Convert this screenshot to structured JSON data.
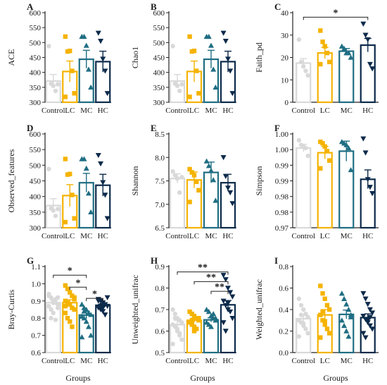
{
  "colors": {
    "Control": "#d9d9d9",
    "LC": "#f5b301",
    "MC": "#1f6e83",
    "HC": "#0c2a4a",
    "axis": "#222222"
  },
  "xlabel": "Groups",
  "chart_data": [
    {
      "type": "bar",
      "panel": "A",
      "ylabel": "ACE",
      "categories": [
        "Control",
        "LC",
        "MC",
        "HC"
      ],
      "ylim": [
        300,
        600
      ],
      "yticks": [
        "300",
        "350",
        "400",
        "450",
        "500",
        "550",
        "600"
      ],
      "values": [
        371,
        403,
        444,
        436
      ],
      "errors": [
        22,
        35,
        30,
        35
      ],
      "points": [
        [
          488,
          362,
          355,
          338,
          360
        ],
        [
          520,
          470,
          472,
          405,
          330,
          318
        ],
        [
          520,
          520,
          490,
          410,
          350
        ],
        [
          532,
          505,
          445,
          405,
          330
        ]
      ],
      "shapes": [
        "circle",
        "square",
        "triangle",
        "triangle-down"
      ],
      "significance": []
    },
    {
      "type": "bar",
      "panel": "B",
      "ylabel": "Chao1",
      "categories": [
        "Control",
        "LC",
        "MC",
        "HC"
      ],
      "ylim": [
        300,
        600
      ],
      "yticks": [
        "300",
        "350",
        "400",
        "450",
        "500",
        "550",
        "600"
      ],
      "values": [
        371,
        403,
        444,
        436
      ],
      "errors": [
        22,
        35,
        30,
        35
      ],
      "points": [
        [
          488,
          362,
          355,
          338,
          360
        ],
        [
          520,
          470,
          472,
          405,
          330,
          318
        ],
        [
          520,
          520,
          490,
          410,
          350
        ],
        [
          532,
          505,
          445,
          405,
          330
        ]
      ],
      "shapes": [
        "circle",
        "square",
        "triangle",
        "triangle-down"
      ],
      "significance": []
    },
    {
      "type": "bar",
      "panel": "C",
      "ylabel": "Faith_pd",
      "categories": [
        "Control",
        "LC",
        "MC",
        "HC"
      ],
      "ylim": [
        0,
        40
      ],
      "yticks": [
        "0",
        "10",
        "20",
        "30",
        "40"
      ],
      "values": [
        17.5,
        22,
        22.8,
        25.5
      ],
      "errors": [
        2,
        2.5,
        1.2,
        3
      ],
      "points": [
        [
          28,
          18,
          16,
          14,
          12
        ],
        [
          32,
          27,
          25,
          22,
          18,
          17
        ],
        [
          25,
          24,
          22,
          22,
          20
        ],
        [
          35,
          30,
          28,
          17,
          15
        ]
      ],
      "shapes": [
        "circle",
        "square",
        "triangle",
        "triangle-down"
      ],
      "significance": [
        {
          "from": 0,
          "to": 3,
          "label": "*",
          "y": 38
        }
      ]
    },
    {
      "type": "bar",
      "panel": "D",
      "ylabel": "Observed_features",
      "categories": [
        "Control",
        "LC",
        "MC",
        "HC"
      ],
      "ylim": [
        300,
        600
      ],
      "yticks": [
        "300",
        "350",
        "400",
        "450",
        "500",
        "550",
        "600"
      ],
      "values": [
        371,
        403,
        444,
        436
      ],
      "errors": [
        22,
        35,
        30,
        35
      ],
      "points": [
        [
          488,
          362,
          355,
          338,
          360
        ],
        [
          520,
          470,
          472,
          405,
          330,
          318
        ],
        [
          520,
          520,
          490,
          410,
          350
        ],
        [
          532,
          505,
          445,
          405,
          330
        ]
      ],
      "shapes": [
        "circle",
        "square",
        "triangle",
        "triangle-down"
      ],
      "significance": []
    },
    {
      "type": "bar",
      "panel": "E",
      "ylabel": "Shannon",
      "categories": [
        "Control",
        "LC",
        "MC",
        "HC"
      ],
      "ylim": [
        6.5,
        8.5
      ],
      "yticks": [
        "6.5",
        "7.0",
        "7.5",
        "8.0",
        "8.5"
      ],
      "values": [
        7.55,
        7.52,
        7.68,
        7.46
      ],
      "errors": [
        0.1,
        0.17,
        0.22,
        0.18
      ],
      "points": [
        [
          7.7,
          7.62,
          7.55,
          7.25,
          7.58
        ],
        [
          7.75,
          7.68,
          7.62,
          7.48,
          7.3,
          7.05
        ],
        [
          7.92,
          7.82,
          7.72,
          7.52,
          7.08
        ],
        [
          8.0,
          7.6,
          7.35,
          7.25,
          7.02
        ]
      ],
      "shapes": [
        "circle",
        "square",
        "triangle",
        "triangle-down"
      ],
      "significance": []
    },
    {
      "type": "bar",
      "panel": "F",
      "ylabel": "Simpson",
      "categories": [
        "Control",
        "LC",
        "MC",
        "HC"
      ],
      "ylim": [
        0.97,
        1.0
      ],
      "yticks": [
        "0.97",
        "0.98",
        "0.98",
        "0.99",
        "0.99",
        "1.00",
        "1.00"
      ],
      "values": [
        0.9955,
        0.994,
        0.9945,
        0.9855
      ],
      "errors": [
        0.0012,
        0.002,
        0.0032,
        0.003
      ],
      "points": [
        [
          0.998,
          0.9965,
          0.996,
          0.9955,
          0.993
        ],
        [
          0.9975,
          0.997,
          0.996,
          0.9945,
          0.9915,
          0.989
        ],
        [
          0.9975,
          0.997,
          0.9965,
          0.9955,
          0.9885
        ],
        [
          0.9985,
          0.994,
          0.9855,
          0.983,
          0.981
        ]
      ],
      "shapes": [
        "circle",
        "square",
        "triangle",
        "triangle-down"
      ],
      "significance": []
    },
    {
      "type": "bar",
      "panel": "G",
      "ylabel": "Bray-Curtis",
      "categories": [
        "Control",
        "LC",
        "MC",
        "HC"
      ],
      "ylim": [
        0.6,
        1.1
      ],
      "yticks": [
        "0.6",
        "0.7",
        "0.8",
        "0.9",
        "1.0",
        "1.1"
      ],
      "values": [
        0.89,
        0.89,
        0.818,
        0.875
      ],
      "errors": [
        0.015,
        0.017,
        0.022,
        0.01
      ],
      "points": [
        [
          0.94,
          0.92,
          0.9,
          0.89,
          0.88,
          0.87,
          0.85,
          0.83,
          0.91,
          0.86,
          0.93,
          0.8,
          0.89,
          0.79,
          0.92
        ],
        [
          0.99,
          0.97,
          0.95,
          0.93,
          0.92,
          0.9,
          0.89,
          0.88,
          0.86,
          0.85,
          0.83,
          0.8,
          0.78,
          0.75,
          0.91,
          0.87
        ],
        [
          0.88,
          0.86,
          0.85,
          0.83,
          0.82,
          0.81,
          0.8,
          0.78,
          0.75,
          0.7,
          0.69,
          0.84
        ],
        [
          0.91,
          0.9,
          0.89,
          0.88,
          0.87,
          0.86,
          0.85,
          0.84,
          0.82,
          0.92,
          0.9,
          0.87,
          0.86
        ]
      ],
      "shapes": [
        "circle",
        "square",
        "triangle",
        "triangle-down"
      ],
      "significance": [
        {
          "from": 0,
          "to": 2,
          "label": "*",
          "y": 1.05
        },
        {
          "from": 1,
          "to": 2,
          "label": "*",
          "y": 0.98
        },
        {
          "from": 2,
          "to": 3,
          "label": "*",
          "y": 0.915
        }
      ]
    },
    {
      "type": "bar",
      "panel": "H",
      "ylabel": "Unweighted_unifrac",
      "categories": [
        "Control",
        "LC",
        "MC",
        "HC"
      ],
      "ylim": [
        0.5,
        0.9
      ],
      "yticks": [
        "0.5",
        "0.6",
        "0.7",
        "0.8",
        "0.9"
      ],
      "values": [
        0.63,
        0.65,
        0.652,
        0.722
      ],
      "errors": [
        0.02,
        0.01,
        0.01,
        0.02
      ],
      "points": [
        [
          0.7,
          0.68,
          0.66,
          0.65,
          0.64,
          0.63,
          0.62,
          0.6,
          0.58,
          0.56,
          0.54,
          0.66,
          0.61,
          0.59
        ],
        [
          0.69,
          0.68,
          0.67,
          0.66,
          0.65,
          0.64,
          0.63,
          0.62,
          0.61,
          0.66,
          0.64,
          0.65,
          0.6
        ],
        [
          0.7,
          0.69,
          0.67,
          0.66,
          0.65,
          0.64,
          0.63,
          0.62,
          0.68,
          0.66
        ],
        [
          0.86,
          0.84,
          0.8,
          0.78,
          0.76,
          0.74,
          0.72,
          0.7,
          0.69,
          0.66,
          0.64,
          0.6,
          0.73
        ]
      ],
      "shapes": [
        "circle",
        "square",
        "triangle",
        "triangle-down"
      ],
      "significance": [
        {
          "from": 0,
          "to": 3,
          "label": "**",
          "y": 0.875
        },
        {
          "from": 1,
          "to": 3,
          "label": "**",
          "y": 0.83
        },
        {
          "from": 2,
          "to": 3,
          "label": "**",
          "y": 0.785
        }
      ]
    },
    {
      "type": "bar",
      "panel": "I",
      "ylabel": "Weighted_unifrac",
      "categories": [
        "Control",
        "LC",
        "MC",
        "HC"
      ],
      "ylim": [
        0,
        0.8
      ],
      "yticks": [
        "0.0",
        "0.2",
        "0.4",
        "0.6",
        "0.8"
      ],
      "values": [
        0.315,
        0.35,
        0.355,
        0.325
      ],
      "errors": [
        0.03,
        0.05,
        0.04,
        0.035
      ],
      "points": [
        [
          0.5,
          0.44,
          0.4,
          0.36,
          0.33,
          0.3,
          0.28,
          0.25,
          0.22,
          0.18,
          0.15,
          0.35,
          0.27
        ],
        [
          0.62,
          0.55,
          0.5,
          0.44,
          0.4,
          0.35,
          0.3,
          0.26,
          0.22,
          0.18,
          0.14,
          0.38,
          0.29
        ],
        [
          0.55,
          0.5,
          0.45,
          0.4,
          0.35,
          0.3,
          0.25,
          0.2,
          0.15,
          0.33
        ],
        [
          0.55,
          0.5,
          0.45,
          0.4,
          0.37,
          0.34,
          0.31,
          0.28,
          0.25,
          0.22,
          0.18,
          0.14,
          0.3,
          0.33
        ]
      ],
      "shapes": [
        "circle",
        "square",
        "triangle",
        "triangle-down"
      ],
      "significance": []
    }
  ]
}
